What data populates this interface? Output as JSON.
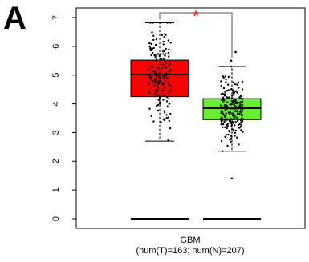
{
  "panel_label": "A",
  "chart_data": {
    "type": "box",
    "title": "",
    "xlabel": "GBM",
    "xsublabel": "(num(T)=163; num(N)=207)",
    "ylabel": "",
    "ylim": [
      -0.5,
      7.2
    ],
    "yticks": [
      0,
      1,
      2,
      3,
      4,
      5,
      6,
      7
    ],
    "grid": false,
    "significance": "*",
    "significance_color": "#ff0000",
    "series": [
      {
        "name": "T",
        "color": "#ff0000",
        "n": 163,
        "min": 2.7,
        "q1": 4.25,
        "median": 5.02,
        "q3": 5.52,
        "max": 6.82
      },
      {
        "name": "N",
        "color": "#66ee33",
        "n": 207,
        "min": 2.35,
        "q1": 3.45,
        "median": 3.85,
        "q3": 4.18,
        "max": 5.3,
        "outliers": [
          1.4,
          5.5,
          5.8
        ]
      }
    ],
    "baseline_value": 0
  }
}
